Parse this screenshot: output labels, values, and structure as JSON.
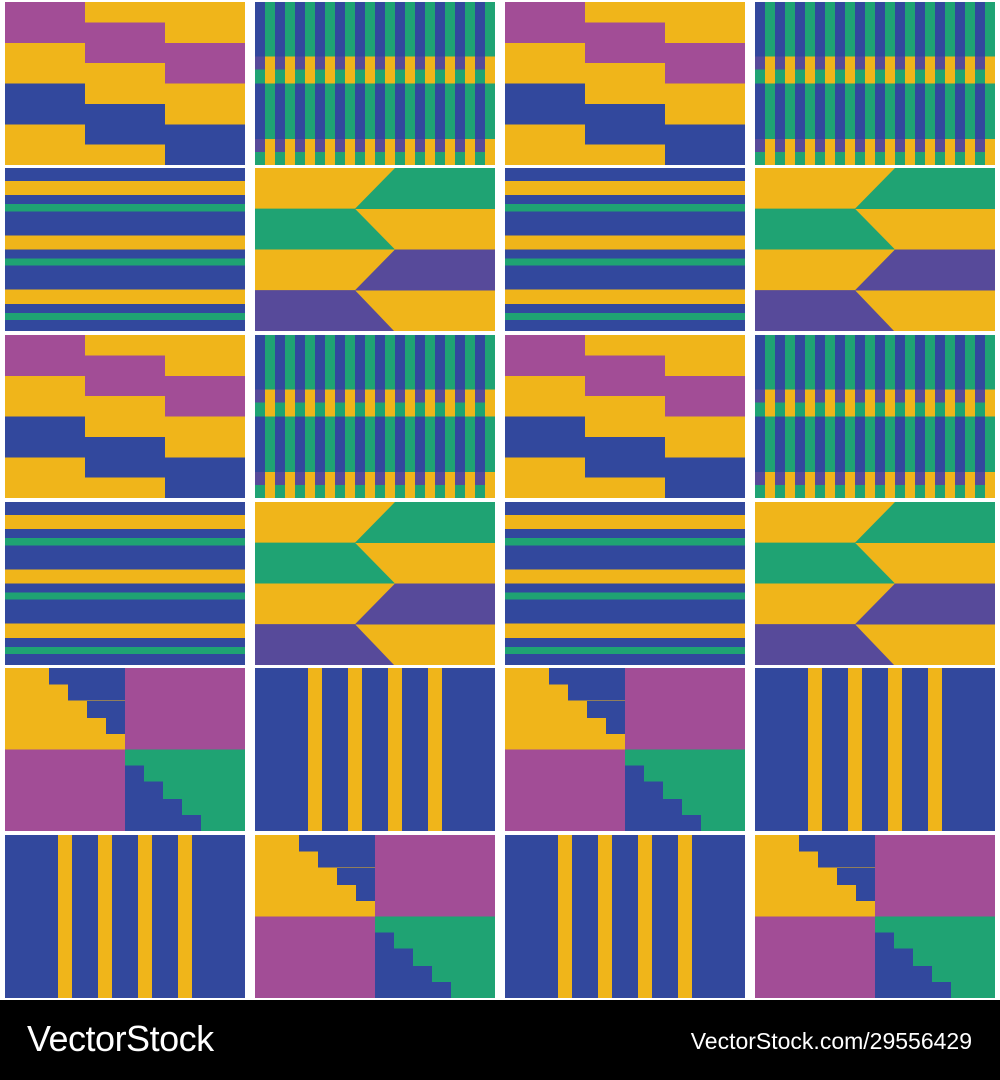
{
  "colors": {
    "yellow": "#F0B51A",
    "purple": "#A24D96",
    "blue": "#32489D",
    "green": "#1FA373",
    "indigo": "#574A9A",
    "background": "#FFFFFF",
    "footer": "#000000"
  },
  "pattern_rows": [
    [
      "blocks",
      "warp-stripes",
      "blocks",
      "warp-stripes"
    ],
    [
      "weft-stripes",
      "chevron",
      "weft-stripes",
      "chevron"
    ],
    [
      "blocks",
      "warp-stripes",
      "blocks",
      "warp-stripes"
    ],
    [
      "weft-stripes",
      "chevron",
      "weft-stripes",
      "chevron"
    ],
    [
      "staircase",
      "yellow-pinstripes",
      "staircase",
      "yellow-pinstripes"
    ],
    [
      "yellow-pinstripes",
      "staircase",
      "yellow-pinstripes",
      "staircase"
    ]
  ],
  "footer": {
    "logo": "VectorStock",
    "url": "VectorStock.com/29556429"
  }
}
